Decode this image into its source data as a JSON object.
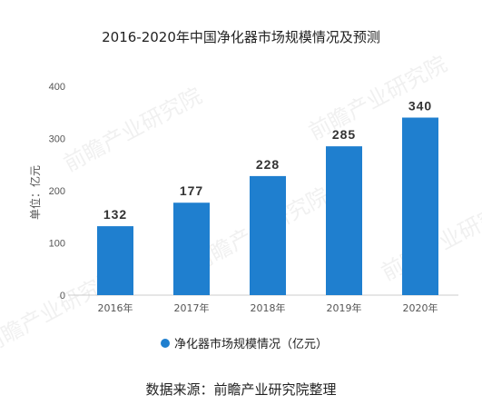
{
  "chart_data": {
    "type": "bar",
    "title": "2016-2020年中国净化器市场规模情况及预测",
    "ylabel": "单位：亿元",
    "xlabel": "",
    "categories": [
      "2016年",
      "2017年",
      "2018年",
      "2019年",
      "2020年"
    ],
    "series": [
      {
        "name": "净化器市场规模情况（亿元）",
        "values": [
          132,
          177,
          228,
          285,
          340
        ]
      }
    ],
    "ylim": [
      0,
      400
    ],
    "yticks": [
      0,
      100,
      200,
      300,
      400
    ],
    "grid": false,
    "legend": "bottom-center",
    "bar_color": "#1f7fcf",
    "data_labels": true
  },
  "source": "数据来源：前瞻产业研究院整理",
  "watermark": "前瞻产业研究院"
}
